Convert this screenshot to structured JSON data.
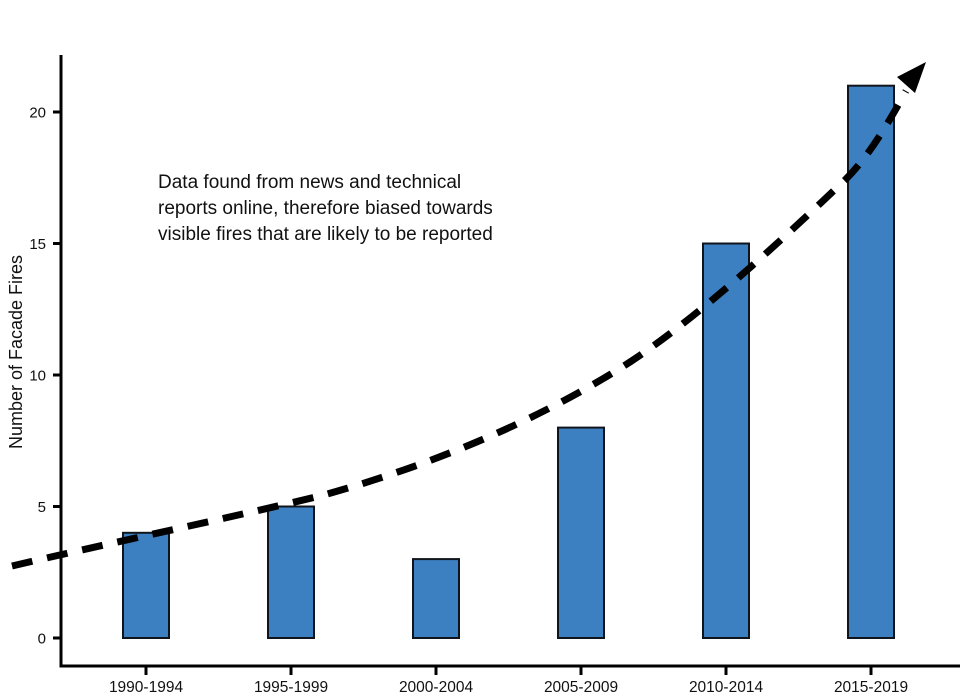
{
  "chart_data": {
    "type": "bar",
    "categories": [
      "1990-1994",
      "1995-1999",
      "2000-2004",
      "2005-2009",
      "2010-2014",
      "2015-2019"
    ],
    "values": [
      4,
      5,
      3,
      8,
      15,
      21
    ],
    "title": "",
    "xlabel": "",
    "ylabel": "Number of Facade Fires",
    "yticks": [
      0,
      5,
      10,
      15,
      20
    ],
    "ylim": [
      0,
      22
    ],
    "grid": false,
    "legend": "none",
    "bar_color": "#3C80C1",
    "bar_border_color": "#10141c",
    "axis_color": "#000000",
    "trend_arrow": {
      "style": "dashed",
      "color": "#000000",
      "start_value": 3,
      "end_value": 22,
      "description": "dashed exponential upward trend arrow across all bars"
    },
    "annotation": {
      "text": "Data found from news and technical reports online, therefore biased towards visible fires that are likely to be reported",
      "lines": [
        "Data found from news and technical",
        "reports online, therefore biased towards",
        "visible fires that are likely to be reported"
      ]
    }
  }
}
